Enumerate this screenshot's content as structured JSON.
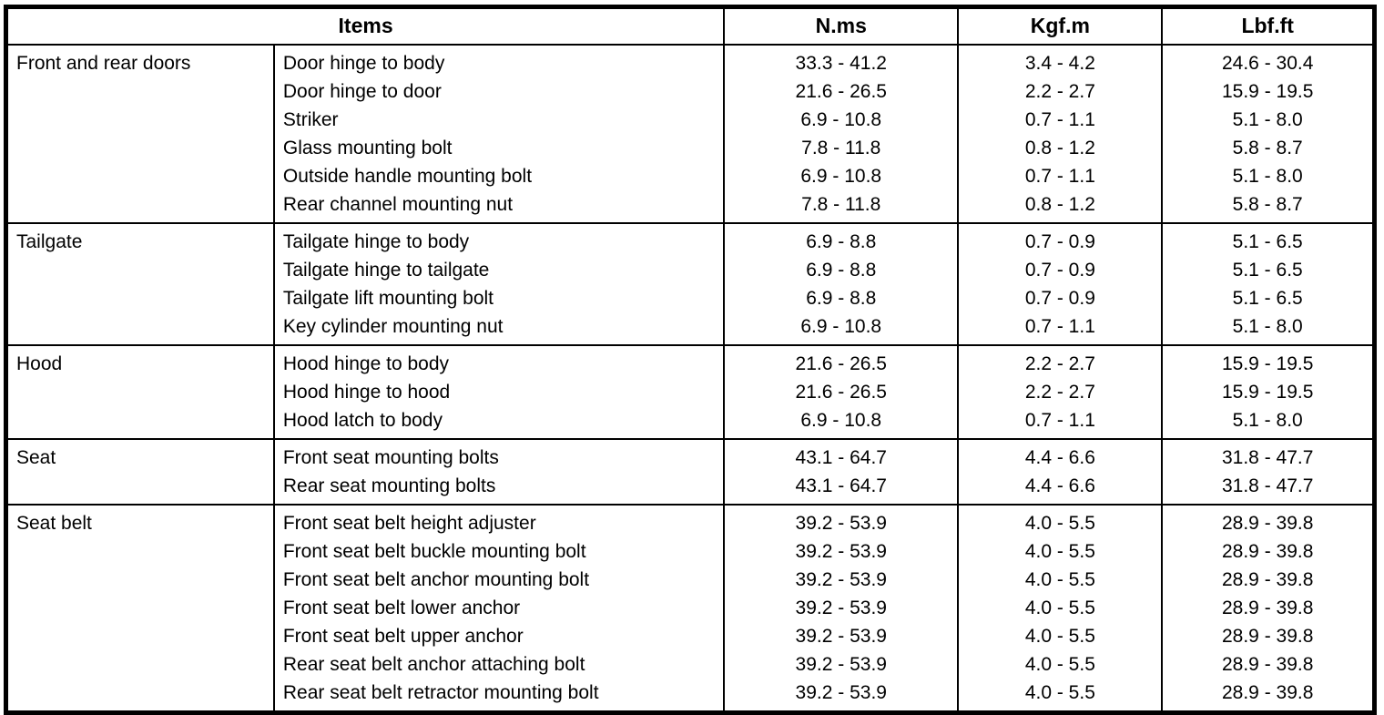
{
  "table": {
    "headers": {
      "items": "Items",
      "nms": "N.ms",
      "kgfm": "Kgf.m",
      "lbfft": "Lbf.ft"
    },
    "sections": [
      {
        "category": "Front and rear doors",
        "rows": [
          {
            "item": "Door hinge to body",
            "nms": "33.3 - 41.2",
            "kgfm": "3.4 - 4.2",
            "lbfft": "24.6 - 30.4"
          },
          {
            "item": "Door hinge to door",
            "nms": "21.6 - 26.5",
            "kgfm": "2.2 - 2.7",
            "lbfft": "15.9 - 19.5"
          },
          {
            "item": "Striker",
            "nms": "6.9 - 10.8",
            "kgfm": "0.7 - 1.1",
            "lbfft": "5.1 - 8.0"
          },
          {
            "item": "Glass mounting bolt",
            "nms": "7.8 - 11.8",
            "kgfm": "0.8 - 1.2",
            "lbfft": "5.8 - 8.7"
          },
          {
            "item": "Outside handle mounting bolt",
            "nms": "6.9 - 10.8",
            "kgfm": "0.7 - 1.1",
            "lbfft": "5.1 - 8.0"
          },
          {
            "item": "Rear channel mounting nut",
            "nms": "7.8 - 11.8",
            "kgfm": "0.8 - 1.2",
            "lbfft": "5.8 - 8.7"
          }
        ]
      },
      {
        "category": "Tailgate",
        "rows": [
          {
            "item": "Tailgate hinge to body",
            "nms": "6.9 - 8.8",
            "kgfm": "0.7 - 0.9",
            "lbfft": "5.1 - 6.5"
          },
          {
            "item": "Tailgate hinge to tailgate",
            "nms": "6.9 - 8.8",
            "kgfm": "0.7 - 0.9",
            "lbfft": "5.1 - 6.5"
          },
          {
            "item": "Tailgate lift mounting bolt",
            "nms": "6.9 - 8.8",
            "kgfm": "0.7 - 0.9",
            "lbfft": "5.1 - 6.5"
          },
          {
            "item": "Key cylinder mounting nut",
            "nms": "6.9 - 10.8",
            "kgfm": "0.7 - 1.1",
            "lbfft": "5.1 - 8.0"
          }
        ]
      },
      {
        "category": "Hood",
        "rows": [
          {
            "item": "Hood hinge to body",
            "nms": "21.6 - 26.5",
            "kgfm": "2.2 - 2.7",
            "lbfft": "15.9 - 19.5"
          },
          {
            "item": "Hood hinge to hood",
            "nms": "21.6 - 26.5",
            "kgfm": "2.2 - 2.7",
            "lbfft": "15.9 - 19.5"
          },
          {
            "item": "Hood latch to body",
            "nms": "6.9 - 10.8",
            "kgfm": "0.7 - 1.1",
            "lbfft": "5.1 - 8.0"
          }
        ]
      },
      {
        "category": "Seat",
        "rows": [
          {
            "item": "Front seat mounting bolts",
            "nms": "43.1 - 64.7",
            "kgfm": "4.4 - 6.6",
            "lbfft": "31.8 - 47.7"
          },
          {
            "item": "Rear seat mounting bolts",
            "nms": "43.1 - 64.7",
            "kgfm": "4.4 - 6.6",
            "lbfft": "31.8 - 47.7"
          }
        ]
      },
      {
        "category": "Seat belt",
        "rows": [
          {
            "item": "Front seat belt height adjuster",
            "nms": "39.2 - 53.9",
            "kgfm": "4.0 - 5.5",
            "lbfft": "28.9 - 39.8"
          },
          {
            "item": "Front seat belt buckle mounting bolt",
            "nms": "39.2 - 53.9",
            "kgfm": "4.0 - 5.5",
            "lbfft": "28.9 - 39.8"
          },
          {
            "item": "Front seat belt anchor mounting bolt",
            "nms": "39.2 - 53.9",
            "kgfm": "4.0 - 5.5",
            "lbfft": "28.9 - 39.8"
          },
          {
            "item": "Front seat belt lower anchor",
            "nms": "39.2 - 53.9",
            "kgfm": "4.0 - 5.5",
            "lbfft": "28.9 - 39.8"
          },
          {
            "item": "Front seat belt upper anchor",
            "nms": "39.2 - 53.9",
            "kgfm": "4.0 - 5.5",
            "lbfft": "28.9 - 39.8"
          },
          {
            "item": "Rear seat belt anchor attaching bolt",
            "nms": "39.2 - 53.9",
            "kgfm": "4.0 - 5.5",
            "lbfft": "28.9 - 39.8"
          },
          {
            "item": "Rear seat belt retractor mounting bolt",
            "nms": "39.2 - 53.9",
            "kgfm": "4.0 - 5.5",
            "lbfft": "28.9 - 39.8"
          }
        ]
      }
    ]
  }
}
